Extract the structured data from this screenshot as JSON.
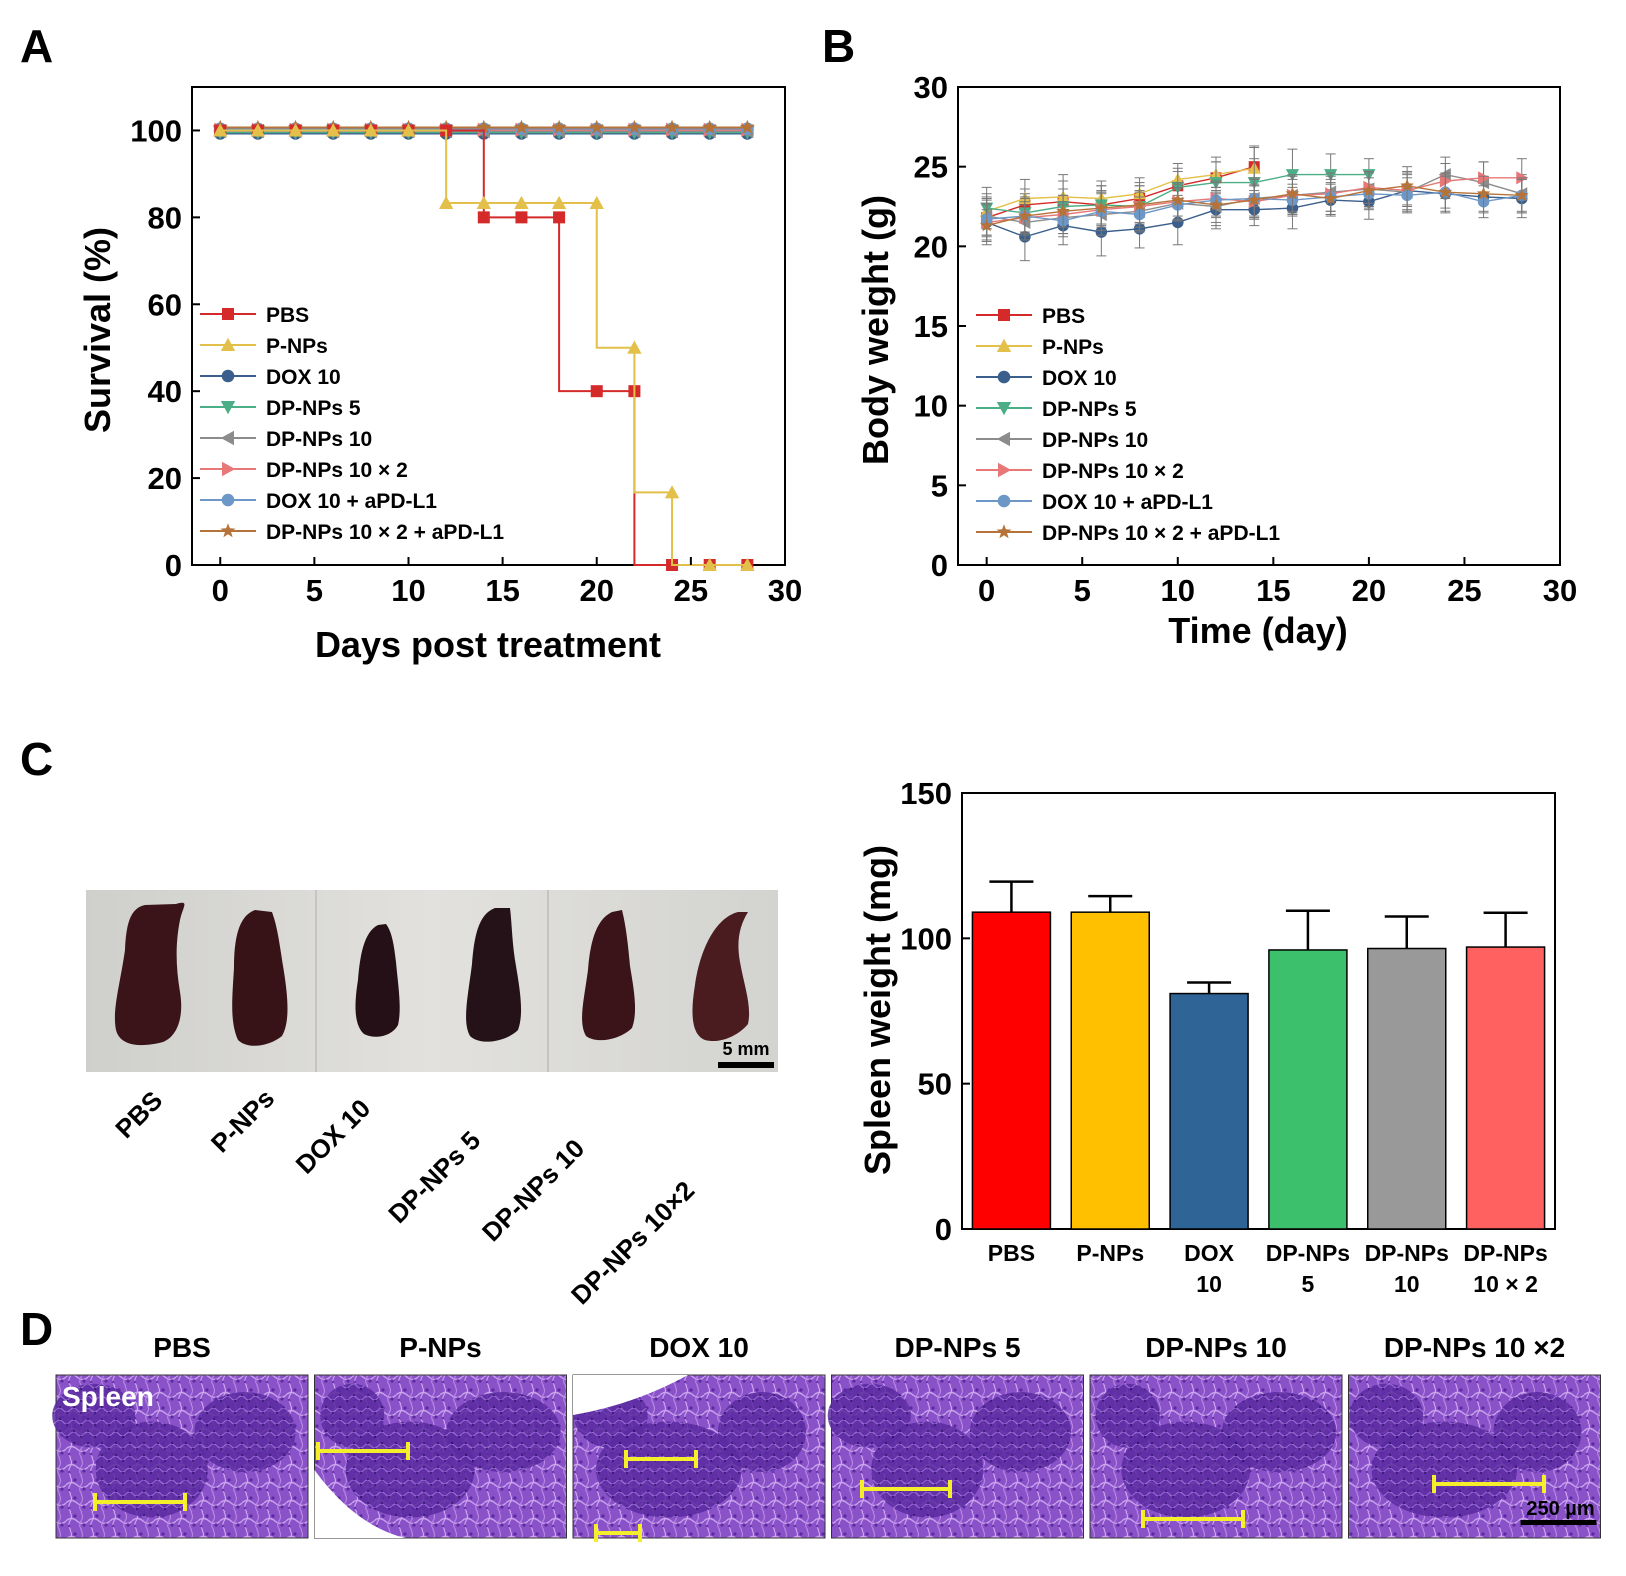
{
  "panels": {
    "a": "A",
    "b": "B",
    "c": "C",
    "d": "D"
  },
  "colors": {
    "PBS": "#d42a2a",
    "P-NPs": "#e3c04a",
    "DOX 10": "#3b5f8c",
    "DP-NPs 5": "#4cae86",
    "DP-NPs 10": "#8c8c8c",
    "DP-NPs 10 × 2": "#e87878",
    "DOX 10 + aPD-L1": "#6d97c6",
    "DP-NPs 10 × 2 + aPD-L1": "#b5733a",
    "bar_PBS": "#ff0000",
    "bar_PNPs": "#ffc000",
    "bar_DOX": "#2f6496",
    "bar_DP5": "#3cc06c",
    "bar_DP10": "#999999",
    "bar_DP10x2": "#ff6161",
    "tissue_base": "#8a4fc8",
    "tissue_dark": "#4a1e8c",
    "tissue_light": "#d7b8ee",
    "scalebar": "#f5ee2a",
    "spleen": "#3a1418",
    "photo_bg": "#d6d6d3"
  },
  "chart_data": [
    {
      "id": "A",
      "type": "line",
      "step": true,
      "title": "",
      "xlabel": "Days post treatment",
      "ylabel": "Survival (%)",
      "xlim": [
        -1.5,
        30
      ],
      "ylim": [
        0,
        110
      ],
      "xticks": [
        0,
        5,
        10,
        15,
        20,
        25,
        30
      ],
      "yticks": [
        0,
        20,
        40,
        60,
        80,
        100
      ],
      "grid": false,
      "legend_position": "lower-left",
      "marker_x": [
        0,
        2,
        4,
        6,
        8,
        10,
        12,
        14,
        16,
        18,
        20,
        22,
        24,
        26,
        28
      ],
      "series": [
        {
          "name": "PBS",
          "marker": "square",
          "step_x": [
            0,
            14,
            18,
            22,
            28
          ],
          "step_y": [
            100,
            80,
            40,
            0,
            0
          ],
          "values": [
            100,
            100,
            100,
            100,
            100,
            100,
            100,
            80,
            80,
            80,
            40,
            40,
            0,
            0,
            0
          ]
        },
        {
          "name": "P-NPs",
          "marker": "triangle-up",
          "step_x": [
            0,
            12,
            20,
            22,
            24,
            28
          ],
          "step_y": [
            100,
            83.3,
            50,
            16.7,
            0,
            0
          ],
          "values": [
            100,
            100,
            100,
            100,
            100,
            100,
            83.3,
            83.3,
            83.3,
            83.3,
            83.3,
            50,
            16.7,
            0,
            0
          ]
        },
        {
          "name": "DOX 10",
          "marker": "circle",
          "step_x": [
            0,
            28
          ],
          "step_y": [
            100,
            100
          ],
          "values": [
            100,
            100,
            100,
            100,
            100,
            100,
            100,
            100,
            100,
            100,
            100,
            100,
            100,
            100,
            100
          ]
        },
        {
          "name": "DP-NPs 5",
          "marker": "triangle-down",
          "step_x": [
            0,
            28
          ],
          "step_y": [
            100,
            100
          ],
          "values": [
            100,
            100,
            100,
            100,
            100,
            100,
            100,
            100,
            100,
            100,
            100,
            100,
            100,
            100,
            100
          ]
        },
        {
          "name": "DP-NPs 10",
          "marker": "triangle-left",
          "step_x": [
            0,
            28
          ],
          "step_y": [
            100,
            100
          ],
          "values": [
            100,
            100,
            100,
            100,
            100,
            100,
            100,
            100,
            100,
            100,
            100,
            100,
            100,
            100,
            100
          ]
        },
        {
          "name": "DP-NPs 10 × 2",
          "marker": "triangle-right",
          "step_x": [
            0,
            28
          ],
          "step_y": [
            100,
            100
          ],
          "values": [
            100,
            100,
            100,
            100,
            100,
            100,
            100,
            100,
            100,
            100,
            100,
            100,
            100,
            100,
            100
          ]
        },
        {
          "name": "DOX 10 + aPD-L1",
          "marker": "circle",
          "step_x": [
            0,
            28
          ],
          "step_y": [
            100,
            100
          ],
          "values": [
            100,
            100,
            100,
            100,
            100,
            100,
            100,
            100,
            100,
            100,
            100,
            100,
            100,
            100,
            100
          ]
        },
        {
          "name": "DP-NPs 10 × 2 + aPD-L1",
          "marker": "star",
          "step_x": [
            0,
            28
          ],
          "step_y": [
            100,
            100
          ],
          "values": [
            100,
            100,
            100,
            100,
            100,
            100,
            100,
            100,
            100,
            100,
            100,
            100,
            100,
            100,
            100
          ]
        }
      ]
    },
    {
      "id": "B",
      "type": "line",
      "title": "",
      "xlabel": "Time (day)",
      "ylabel": "Body weight (g)",
      "xlim": [
        -1.5,
        30
      ],
      "ylim": [
        0,
        30
      ],
      "xticks": [
        0,
        5,
        10,
        15,
        20,
        25,
        30
      ],
      "yticks": [
        0,
        5,
        10,
        15,
        20,
        25,
        30
      ],
      "grid": false,
      "legend_position": "lower-left",
      "series": [
        {
          "name": "PBS",
          "marker": "square",
          "x": [
            0,
            2,
            4,
            6,
            8,
            10,
            12,
            14
          ],
          "values": [
            21.8,
            22.6,
            22.8,
            22.6,
            23.0,
            23.8,
            24.3,
            25.0
          ],
          "err": [
            1.2,
            1.0,
            1.3,
            1.2,
            1.0,
            1.1,
            1.0,
            1.2
          ]
        },
        {
          "name": "P-NPs",
          "marker": "triangle-up",
          "x": [
            0,
            2,
            4,
            6,
            8,
            10,
            12,
            14
          ],
          "values": [
            22.2,
            23.0,
            23.1,
            23.0,
            23.3,
            24.2,
            24.5,
            24.9
          ],
          "err": [
            1.1,
            1.2,
            1.4,
            1.1,
            1.0,
            1.0,
            1.1,
            1.4
          ]
        },
        {
          "name": "DOX 10",
          "marker": "circle",
          "x": [
            0,
            2,
            4,
            6,
            8,
            10,
            12,
            14,
            16,
            18,
            20,
            22,
            24,
            26,
            28
          ],
          "values": [
            21.5,
            20.6,
            21.3,
            20.9,
            21.1,
            21.5,
            22.3,
            22.3,
            22.4,
            22.9,
            22.8,
            23.5,
            23.3,
            23.1,
            23.0
          ],
          "err": [
            1.4,
            1.5,
            1.2,
            1.5,
            1.2,
            1.4,
            1.2,
            1.0,
            1.3,
            1.0,
            1.1,
            1.0,
            1.2,
            1.0,
            1.2
          ]
        },
        {
          "name": "DP-NPs 5",
          "marker": "triangle-down",
          "x": [
            0,
            2,
            4,
            6,
            8,
            10,
            12,
            14,
            16,
            18,
            20
          ],
          "values": [
            22.4,
            22.1,
            22.5,
            22.6,
            22.5,
            23.7,
            24.0,
            24.0,
            24.5,
            24.5,
            24.5
          ],
          "err": [
            1.3,
            1.2,
            1.1,
            1.2,
            1.3,
            1.0,
            1.3,
            1.5,
            1.6,
            1.3,
            1.0
          ]
        },
        {
          "name": "DP-NPs 10",
          "marker": "triangle-left",
          "x": [
            0,
            2,
            4,
            6,
            8,
            10,
            12,
            14,
            16,
            18,
            20,
            22,
            24,
            26,
            28
          ],
          "values": [
            21.9,
            21.5,
            21.8,
            22.0,
            22.2,
            22.7,
            22.5,
            23.0,
            23.2,
            23.4,
            23.6,
            23.4,
            24.5,
            24.0,
            23.3
          ],
          "err": [
            1.2,
            1.1,
            1.0,
            1.3,
            1.2,
            1.0,
            1.2,
            1.3,
            1.0,
            1.2,
            1.1,
            1.2,
            1.1,
            1.3,
            1.2
          ]
        },
        {
          "name": "DP-NPs 10 × 2",
          "marker": "triangle-right",
          "x": [
            0,
            2,
            4,
            6,
            8,
            10,
            12,
            14,
            16,
            18,
            20,
            22,
            24,
            26,
            28
          ],
          "values": [
            21.5,
            21.8,
            22.0,
            22.3,
            22.5,
            22.8,
            23.0,
            22.8,
            23.2,
            23.3,
            23.7,
            23.5,
            24.1,
            24.3,
            24.3
          ],
          "err": [
            1.1,
            1.0,
            1.2,
            1.1,
            1.0,
            1.2,
            1.1,
            1.0,
            1.2,
            1.1,
            1.0,
            1.2,
            1.1,
            1.0,
            1.2
          ]
        },
        {
          "name": "DOX 10 + aPD-L1",
          "marker": "circle",
          "x": [
            0,
            2,
            4,
            6,
            8,
            10,
            12,
            14,
            16,
            18,
            20,
            22,
            24,
            26,
            28
          ],
          "values": [
            21.7,
            21.9,
            21.6,
            22.2,
            22.0,
            22.6,
            22.9,
            23.0,
            22.9,
            23.1,
            23.3,
            23.2,
            23.4,
            22.8,
            23.2
          ],
          "err": [
            1.0,
            1.1,
            1.0,
            1.2,
            1.1,
            1.0,
            1.1,
            1.2,
            1.0,
            1.1,
            1.0,
            1.1,
            1.2,
            1.0,
            1.1
          ]
        },
        {
          "name": "DP-NPs 10 × 2 + aPD-L1",
          "marker": "star",
          "x": [
            0,
            2,
            4,
            6,
            8,
            10,
            12,
            14,
            16,
            18,
            20,
            22,
            24,
            26,
            28
          ],
          "values": [
            21.3,
            21.9,
            22.2,
            22.4,
            22.6,
            22.9,
            22.6,
            22.9,
            23.3,
            23.0,
            23.5,
            23.8,
            23.4,
            23.3,
            23.2
          ],
          "err": [
            1.0,
            1.2,
            1.0,
            1.1,
            1.2,
            1.0,
            1.1,
            1.0,
            1.2,
            1.0,
            1.1,
            1.2,
            1.0,
            1.1,
            1.0
          ]
        }
      ]
    },
    {
      "id": "C",
      "type": "bar",
      "title": "",
      "xlabel": "",
      "ylabel": "Spleen weight (mg)",
      "ylim": [
        0,
        150
      ],
      "yticks": [
        0,
        50,
        100,
        150
      ],
      "grid": false,
      "categories": [
        [
          "PBS"
        ],
        [
          "P-NPs"
        ],
        [
          "DOX",
          "10"
        ],
        [
          "DP-NPs",
          "5"
        ],
        [
          "DP-NPs",
          "10"
        ],
        [
          "DP-NPs",
          "10 × 2"
        ]
      ],
      "values": [
        109,
        109,
        81,
        96,
        96.5,
        97
      ],
      "err": [
        10.5,
        5.5,
        3.8,
        13.5,
        11.0,
        11.8
      ],
      "bar_colors": [
        "bar_PBS",
        "bar_PNPs",
        "bar_DOX",
        "bar_DP5",
        "bar_DP10",
        "bar_DP10x2"
      ]
    }
  ],
  "photo": {
    "labels": [
      "PBS",
      "P-NPs",
      "DOX 10",
      "DP-NPs 5",
      "DP-NPs 10",
      "DP-NPs 10×2"
    ],
    "scale_label": "5 mm"
  },
  "histology": {
    "titles": [
      "PBS",
      "P-NPs",
      "DOX 10",
      "DP-NPs 5",
      "DP-NPs 10",
      "DP-NPs 10 ×2"
    ],
    "tissue_label": "Spleen",
    "scale_label": "250 µm"
  }
}
